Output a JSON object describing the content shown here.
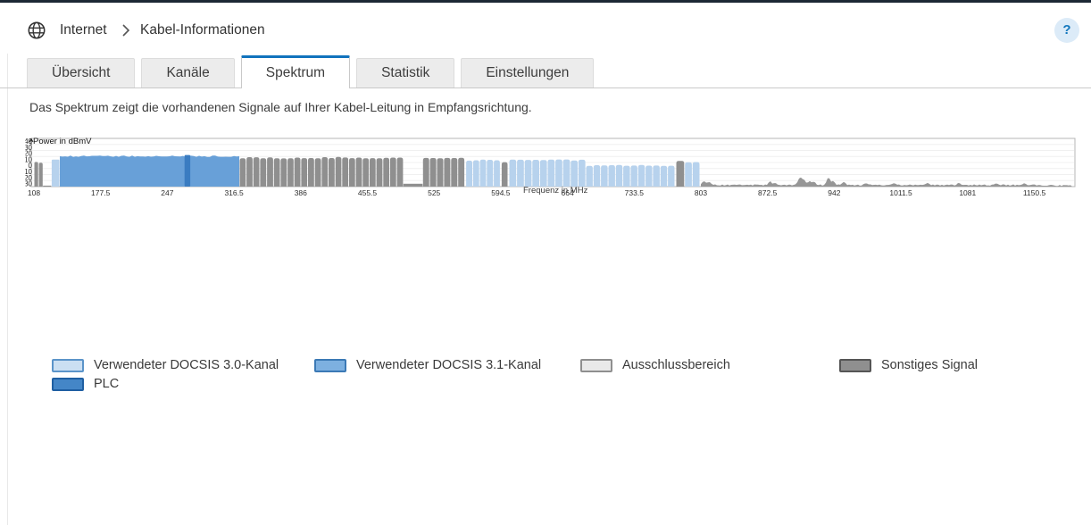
{
  "app": {
    "topbar_color": "#1c2835",
    "accent_color": "#1173bd",
    "breadcrumb": {
      "section": "Internet",
      "page": "Kabel-Informationen"
    },
    "help_label": "?"
  },
  "tabs": [
    {
      "label": "Übersicht",
      "active": false
    },
    {
      "label": "Kanäle",
      "active": false
    },
    {
      "label": "Spektrum",
      "active": true
    },
    {
      "label": "Statistik",
      "active": false
    },
    {
      "label": "Einstellungen",
      "active": false
    }
  ],
  "description": "Das Spektrum zeigt die vorhandenen Signale auf Ihrer Kabel-Leitung in Empfangsrichtung.",
  "chart_data": {
    "type": "area",
    "title": "",
    "xlabel": "Frequenz in MHz",
    "ylabel": "Power in dBmV",
    "x_ticks": [
      108,
      177.5,
      247,
      316.5,
      386,
      455.5,
      525,
      594.5,
      664,
      733.5,
      803,
      872.5,
      942,
      1011.5,
      1081,
      1150.5
    ],
    "y_ticks": [
      40,
      30,
      20,
      10,
      0,
      -10,
      -20,
      -30
    ],
    "x_range": [
      105,
      1192
    ],
    "grid": true,
    "legend_position": "bottom",
    "colors": {
      "docsis30": "#b7d2ed",
      "docsis31": "#68a0d8",
      "plc": "#3a7cc1",
      "other": "#8f8f8f",
      "exclusion": "#e9e9e9",
      "noise": "#969696"
    },
    "segments": [
      {
        "kind": "other",
        "shape": "scallop",
        "f0": 108,
        "f1": 117.5,
        "h": 0.5,
        "cw": 4.7
      },
      {
        "kind": "other",
        "shape": "floor",
        "f0": 117.5,
        "f1": 126,
        "h": 0.02
      },
      {
        "kind": "docsis30",
        "shape": "block",
        "f0": 126.5,
        "f1": 134.5,
        "h": 0.56
      },
      {
        "kind": "docsis31",
        "shape": "block",
        "f0": 135,
        "f1": 322,
        "h": 0.63
      },
      {
        "kind": "plc",
        "shape": "block",
        "f0": 265,
        "f1": 271,
        "h": 0.655
      },
      {
        "kind": "other",
        "shape": "scallop",
        "f0": 322,
        "f1": 493,
        "h": 0.6,
        "cw": 7
      },
      {
        "kind": "other",
        "shape": "floor",
        "f0": 493,
        "f1": 513,
        "h": 0.06
      },
      {
        "kind": "other",
        "shape": "scallop",
        "f0": 513,
        "f1": 557,
        "h": 0.6,
        "cw": 7
      },
      {
        "kind": "docsis30",
        "shape": "scallop",
        "f0": 558,
        "f1": 594,
        "h": 0.55,
        "cw": 8
      },
      {
        "kind": "other",
        "shape": "scallop",
        "f0": 595,
        "f1": 602,
        "h": 0.5,
        "cw": 7
      },
      {
        "kind": "docsis30",
        "shape": "scallop",
        "f0": 603,
        "f1": 683,
        "h": 0.55,
        "cw": 8
      },
      {
        "kind": "docsis30",
        "shape": "scallop",
        "f0": 683,
        "f1": 776,
        "h": 0.44,
        "cw": 8
      },
      {
        "kind": "other",
        "shape": "scallop",
        "f0": 777,
        "f1": 786,
        "h": 0.52,
        "cw": 8
      },
      {
        "kind": "docsis30",
        "shape": "scallop",
        "f0": 786,
        "f1": 802,
        "h": 0.5,
        "cw": 8
      },
      {
        "kind": "noise",
        "shape": "noise",
        "f0": 803,
        "f1": 1190,
        "h": 0.025
      }
    ],
    "noise_spikes": [
      {
        "f": 806,
        "h": 0.09
      },
      {
        "f": 812,
        "h": 0.06
      },
      {
        "f": 875,
        "h": 0.07
      },
      {
        "f": 880,
        "h": 0.05
      },
      {
        "f": 906,
        "h": 0.15
      },
      {
        "f": 910,
        "h": 0.11
      },
      {
        "f": 916,
        "h": 0.08
      },
      {
        "f": 921,
        "h": 0.06
      },
      {
        "f": 936,
        "h": 0.16
      },
      {
        "f": 941,
        "h": 0.09
      },
      {
        "f": 952,
        "h": 0.06
      },
      {
        "f": 975,
        "h": 0.04
      },
      {
        "f": 1005,
        "h": 0.035
      },
      {
        "f": 1040,
        "h": 0.04
      },
      {
        "f": 1072,
        "h": 0.05
      },
      {
        "f": 1110,
        "h": 0.03
      },
      {
        "f": 1140,
        "h": 0.03
      }
    ]
  },
  "legend": [
    {
      "label": "Verwendeter DOCSIS 3.0-Kanal",
      "fill": "#cbdff2",
      "border": "#5b94c9"
    },
    {
      "label": "Verwendeter DOCSIS 3.1-Kanal",
      "fill": "#7db0e0",
      "border": "#3b79b5"
    },
    {
      "label": "Ausschlussbereich",
      "fill": "#e9e9e9",
      "border": "#8f8f8f"
    },
    {
      "label": "Sonstiges Signal",
      "fill": "#8f8f8f",
      "border": "#555555"
    },
    {
      "label": "PLC",
      "fill": "#4486c7",
      "border": "#1f5fa2"
    }
  ]
}
